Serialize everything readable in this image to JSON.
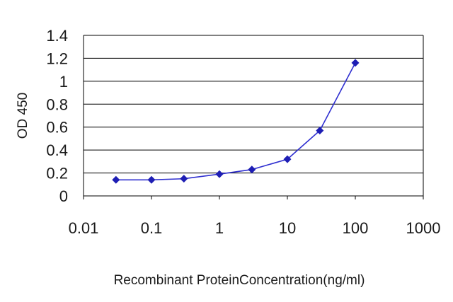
{
  "chart_data": {
    "type": "line",
    "title": "",
    "xlabel": "Recombinant ProteinConcentration(ng/ml)",
    "ylabel": "OD 450",
    "x_scale": "log",
    "xlim": [
      0.01,
      1000
    ],
    "ylim": [
      0,
      1.4
    ],
    "x_ticks": [
      "0.01",
      "0.1",
      "1",
      "10",
      "100",
      "1000"
    ],
    "y_ticks": [
      "0",
      "0.2",
      "0.4",
      "0.6",
      "0.8",
      "1",
      "1.2",
      "1.4"
    ],
    "grid": "horizontal",
    "legend": "none",
    "series": [
      {
        "x": [
          0.03,
          0.1,
          0.3,
          1,
          3,
          10,
          30,
          100
        ],
        "y": [
          0.14,
          0.14,
          0.15,
          0.19,
          0.23,
          0.32,
          0.57,
          1.16
        ]
      }
    ],
    "colors": {
      "line": "#2f2fd0",
      "marker": "#1e1eb4",
      "grid": "#000000",
      "plot_background": "#ffffff"
    }
  }
}
